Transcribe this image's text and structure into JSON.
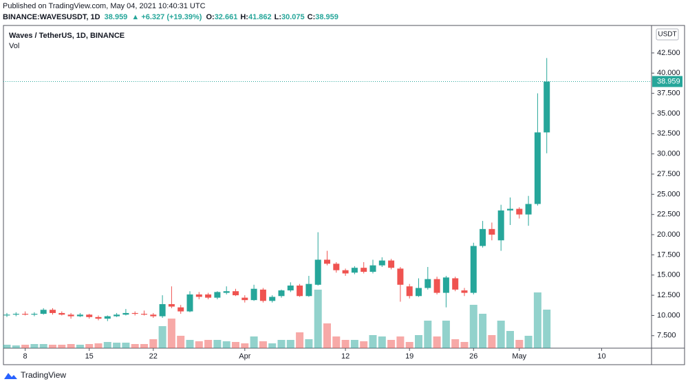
{
  "header": {
    "published": "Published on TradingView.com, May 04, 2021 10:40:31 UTC",
    "symbol": "BINANCE:WAVESUSDT, 1D",
    "last": "38.959",
    "change": "▲ +6.327 (+19.39%)",
    "ohlc": [
      {
        "key": "O:",
        "value": "32.661"
      },
      {
        "key": "H:",
        "value": "41.862"
      },
      {
        "key": "L:",
        "value": "30.075"
      },
      {
        "key": "C:",
        "value": "38.959"
      }
    ]
  },
  "footer": {
    "brand": "TradingView"
  },
  "chart_data": {
    "type": "candlestick",
    "legend": [
      "Waves / TetherUS, 1D, BINANCE",
      "Vol"
    ],
    "currency": "USDT",
    "up_color": "#26a69a",
    "down_color": "#ef5350",
    "categories": [
      null,
      null,
      "8",
      null,
      null,
      null,
      null,
      null,
      null,
      "15",
      null,
      null,
      null,
      null,
      null,
      null,
      "22",
      null,
      null,
      null,
      null,
      null,
      null,
      null,
      null,
      null,
      "Apr",
      null,
      null,
      null,
      null,
      null,
      null,
      null,
      null,
      null,
      null,
      "12",
      null,
      null,
      null,
      null,
      null,
      null,
      "19",
      null,
      null,
      null,
      null,
      null,
      null,
      "26",
      null,
      null,
      null,
      null,
      "May",
      null,
      null,
      null,
      null,
      null,
      null,
      null,
      null,
      "10",
      null,
      null,
      null,
      null,
      null
    ],
    "open": [
      10.0,
      10.1,
      10.2,
      10.1,
      10.2,
      10.7,
      10.3,
      10.1,
      9.9,
      10.1,
      9.8,
      9.6,
      9.9,
      10.1,
      10.3,
      10.2,
      10.1,
      9.9,
      11.4,
      11.0,
      10.5,
      12.6,
      12.6,
      12.2,
      12.8,
      13.0,
      12.2,
      11.9,
      13.2,
      11.8,
      12.4,
      13.1,
      13.7,
      12.4,
      13.8,
      16.9,
      16.4,
      15.6,
      15.3,
      15.9,
      15.4,
      16.2,
      16.8,
      15.8,
      13.6,
      12.4,
      13.4,
      14.5,
      12.8,
      14.6,
      13.1,
      12.8,
      18.6,
      20.7,
      19.3,
      23.0,
      23.2,
      22.5,
      23.8,
      32.661,
      null,
      null,
      null,
      null,
      null,
      null,
      null,
      null,
      null,
      null,
      null
    ],
    "high": [
      10.3,
      10.4,
      10.5,
      10.4,
      10.9,
      10.9,
      10.5,
      10.3,
      10.3,
      10.2,
      10.0,
      10.0,
      10.3,
      10.8,
      10.5,
      10.6,
      10.3,
      12.5,
      13.6,
      11.3,
      13.0,
      12.9,
      12.8,
      13.0,
      13.6,
      13.3,
      12.5,
      13.8,
      13.4,
      12.5,
      13.2,
      14.1,
      13.9,
      14.9,
      20.3,
      18.0,
      16.6,
      15.8,
      16.1,
      16.6,
      16.9,
      17.2,
      17.0,
      16.0,
      13.9,
      14.6,
      16.0,
      14.8,
      14.9,
      14.8,
      13.4,
      19.0,
      21.7,
      21.5,
      23.7,
      24.6,
      23.4,
      24.8,
      37.5,
      41.862,
      null,
      null,
      null,
      null,
      null,
      null,
      null,
      null,
      null,
      null,
      null
    ],
    "low": [
      9.8,
      9.9,
      10.0,
      9.9,
      10.1,
      10.1,
      10.0,
      9.6,
      9.8,
      9.6,
      9.4,
      9.3,
      9.8,
      10.0,
      10.0,
      10.0,
      9.7,
      9.7,
      10.9,
      10.2,
      10.4,
      12.0,
      12.0,
      12.0,
      12.6,
      12.4,
      11.6,
      11.8,
      11.6,
      11.6,
      12.2,
      12.9,
      12.3,
      12.3,
      13.7,
      16.2,
      15.3,
      14.9,
      15.1,
      15.2,
      15.2,
      16.0,
      15.7,
      11.7,
      12.1,
      12.3,
      13.2,
      12.6,
      11.0,
      13.0,
      12.4,
      12.6,
      18.4,
      19.3,
      18.0,
      21.2,
      22.0,
      21.1,
      23.6,
      30.075,
      null,
      null,
      null,
      null,
      null,
      null,
      null,
      null,
      null,
      null,
      null
    ],
    "close": [
      10.1,
      10.2,
      10.1,
      10.2,
      10.7,
      10.3,
      10.1,
      9.9,
      10.1,
      9.8,
      9.6,
      9.9,
      10.1,
      10.3,
      10.2,
      10.1,
      9.9,
      11.4,
      11.1,
      10.5,
      12.6,
      12.3,
      12.2,
      12.9,
      13.0,
      12.5,
      11.9,
      13.3,
      11.8,
      12.3,
      13.1,
      13.7,
      12.4,
      13.9,
      16.9,
      16.4,
      15.6,
      15.2,
      15.9,
      15.4,
      16.2,
      16.8,
      15.9,
      13.8,
      12.4,
      13.4,
      14.5,
      12.8,
      14.7,
      13.2,
      12.8,
      18.6,
      20.7,
      20.0,
      23.0,
      23.2,
      22.5,
      23.8,
      32.661,
      38.959,
      null,
      null,
      null,
      null,
      null,
      null,
      null,
      null,
      null,
      null,
      null
    ],
    "volume": [
      5,
      4,
      5,
      6,
      6,
      5,
      5,
      6,
      5,
      6,
      7,
      9,
      8,
      8,
      6,
      6,
      13,
      32,
      43,
      18,
      12,
      10,
      12,
      12,
      10,
      9,
      7,
      17,
      10,
      7,
      12,
      12,
      23,
      13,
      85,
      36,
      17,
      12,
      12,
      10,
      19,
      17,
      12,
      17,
      9,
      19,
      40,
      17,
      40,
      13,
      9,
      63,
      50,
      19,
      40,
      25,
      12,
      18,
      81,
      56,
      null,
      null,
      null,
      null,
      null,
      null,
      null,
      null,
      null,
      null,
      null
    ],
    "last_index": 59,
    "ylim": [
      5.95,
      45.9
    ],
    "yticks": [
      {
        "value": 7.5,
        "label": "7.500"
      },
      {
        "value": 10,
        "label": "10.000"
      },
      {
        "value": 12.5,
        "label": "12.500"
      },
      {
        "value": 15,
        "label": "15.000"
      },
      {
        "value": 17.5,
        "label": "17.500"
      },
      {
        "value": 20,
        "label": "20.000"
      },
      {
        "value": 22.5,
        "label": "22.500"
      },
      {
        "value": 25,
        "label": "25.000"
      },
      {
        "value": 27.5,
        "label": "27.500"
      },
      {
        "value": 30,
        "label": "30.000"
      },
      {
        "value": 32.5,
        "label": "32.500"
      },
      {
        "value": 35,
        "label": "35.000"
      },
      {
        "value": 37.5,
        "label": "37.500"
      },
      {
        "value": 40,
        "label": "40.000"
      },
      {
        "value": 42.5,
        "label": "42.500"
      }
    ]
  }
}
